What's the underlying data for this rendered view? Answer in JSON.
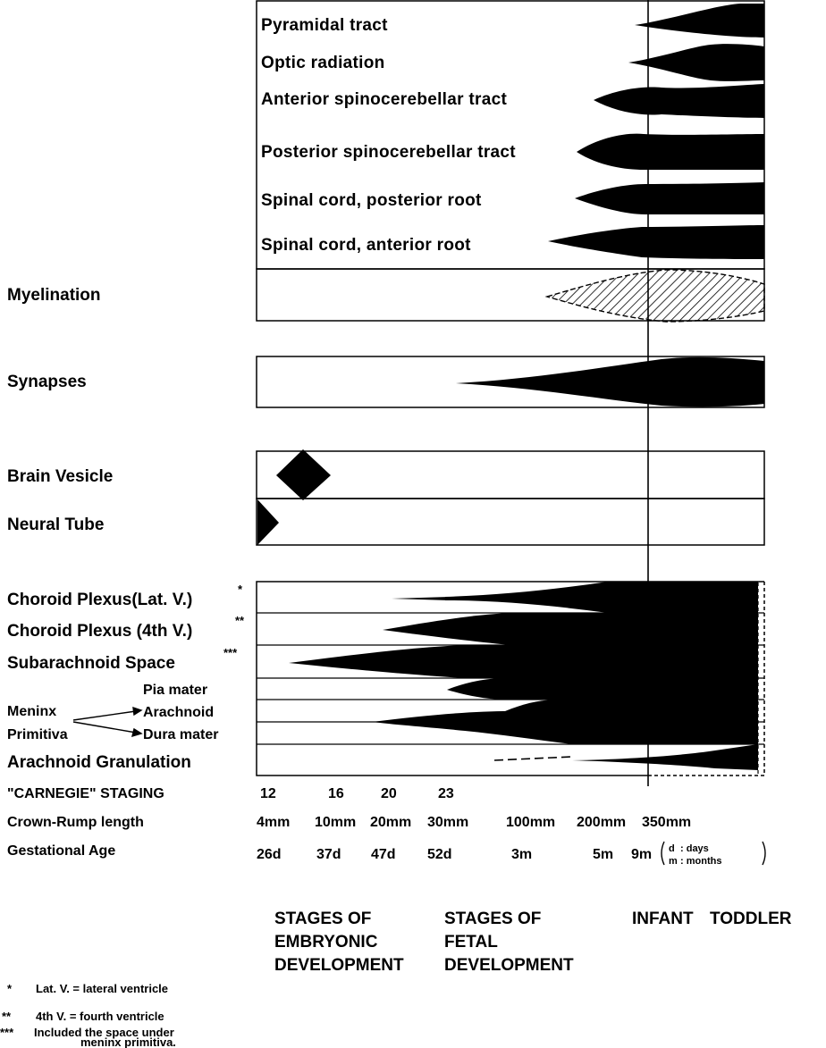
{
  "tracts": [
    "Pyramidal tract",
    "Optic radiation",
    "Anterior spinocerebellar tract",
    "Posterior spinocerebellar tract",
    "Spinal cord, posterior root",
    "Spinal cord, anterior root"
  ],
  "row_labels": {
    "myelination": "Myelination",
    "synapses": "Synapses",
    "brain_vesicle": "Brain Vesicle",
    "neural_tube": "Neural Tube",
    "choroid_lat": "Choroid Plexus(Lat. V.)",
    "choroid_lat_mark": "*",
    "choroid_4th": "Choroid Plexus (4th V.)",
    "choroid_4th_mark": "**",
    "subarachnoid": "Subarachnoid Space",
    "subarachnoid_mark": "***",
    "meninx": "Meninx",
    "primitiva": "Primitiva",
    "pia": "Pia mater",
    "arachnoid": "Arachnoid",
    "dura": "Dura mater",
    "granulation": "Arachnoid Granulation"
  },
  "scale": {
    "carnegie_label": "\"CARNEGIE\" STAGING",
    "carnegie": [
      "12",
      "16",
      "20",
      "23"
    ],
    "crl_label": "Crown-Rump length",
    "crl": [
      "4mm",
      "10mm",
      "20mm",
      "30mm",
      "100mm",
      "200mm",
      "350mm"
    ],
    "ga_label": "Gestational Age",
    "ga": [
      "26d",
      "37d",
      "47d",
      "52d",
      "3m",
      "5m",
      "9m"
    ],
    "key_d": "d",
    "key_days": ": days",
    "key_m": "m",
    "key_months": ": months"
  },
  "stages": {
    "embryonic": [
      "STAGES OF",
      "EMBRYONIC",
      "DEVELOPMENT"
    ],
    "fetal": [
      "STAGES OF",
      "FETAL",
      "DEVELOPMENT"
    ],
    "infant": "INFANT",
    "toddler": "TODDLER"
  },
  "footnotes": [
    {
      "mark": "*",
      "text": "Lat. V. = lateral ventricle"
    },
    {
      "mark": "**",
      "text": "4th V. = fourth ventricle"
    },
    {
      "mark": "***",
      "text": "Included the space under"
    },
    {
      "mark": "",
      "text": "meninx primitiva."
    }
  ]
}
